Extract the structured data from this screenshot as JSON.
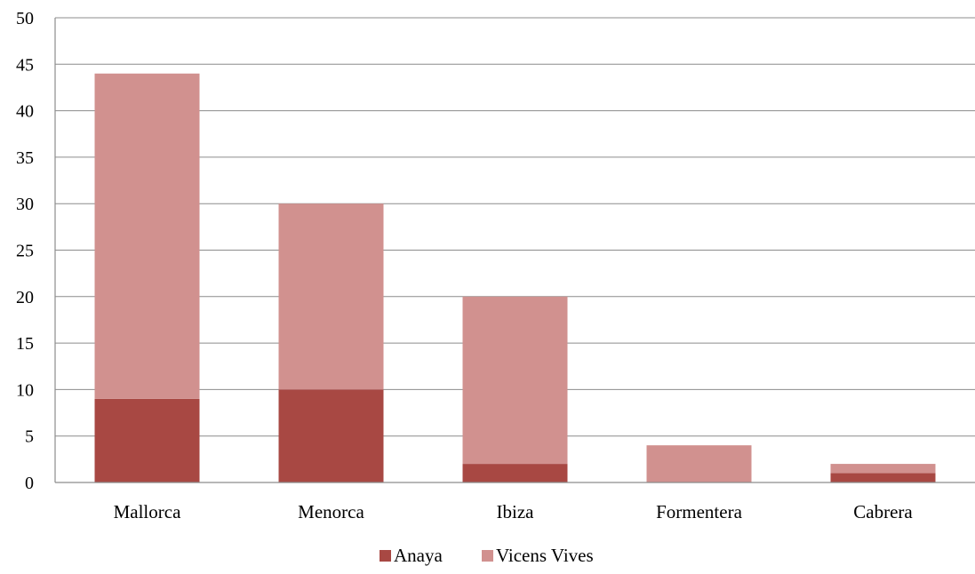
{
  "chart_data": {
    "type": "bar",
    "stacked": true,
    "title": "",
    "xlabel": "",
    "ylabel": "",
    "categories": [
      "Mallorca",
      "Menorca",
      "Ibiza",
      "Formentera",
      "Cabrera"
    ],
    "series": [
      {
        "name": "Anaya",
        "color": "#a84843",
        "values": [
          9,
          10,
          2,
          0,
          1
        ]
      },
      {
        "name": "Vicens Vives",
        "color": "#d1918f",
        "values": [
          35,
          20,
          18,
          4,
          1
        ]
      }
    ],
    "ylim": [
      0,
      50
    ],
    "yticks": [
      0,
      5,
      10,
      15,
      20,
      25,
      30,
      35,
      40,
      45,
      50
    ],
    "grid": true,
    "legend_position": "bottom"
  }
}
